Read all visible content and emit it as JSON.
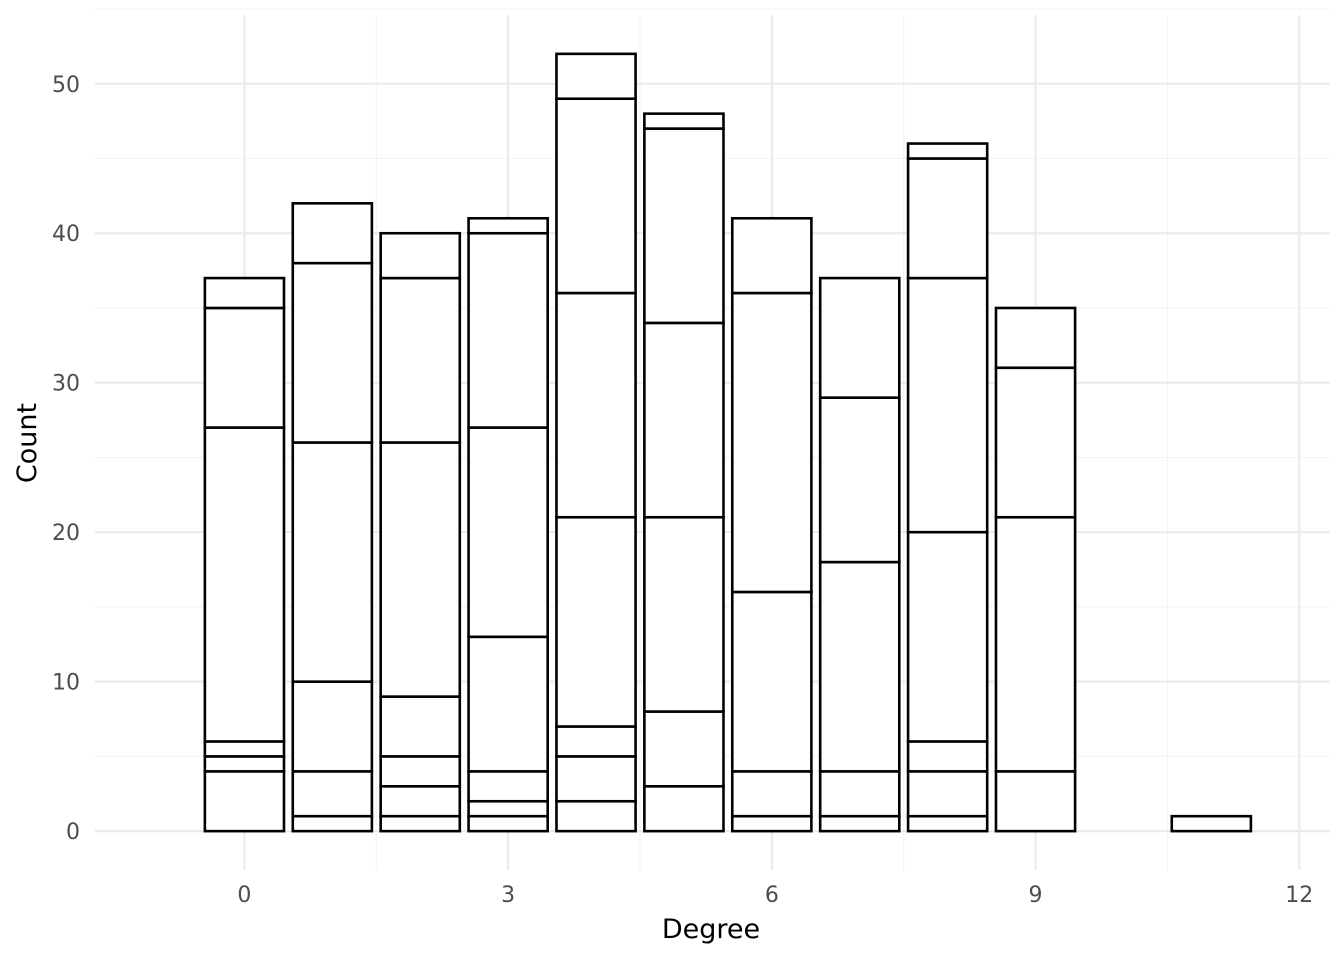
{
  "chart_data": {
    "type": "bar",
    "stacked": true,
    "xlabel": "Degree",
    "ylabel": "Count",
    "xlim": [
      -1.7,
      12.35
    ],
    "ylim": [
      -2.6,
      54.6
    ],
    "x_ticks": [
      0,
      3,
      6,
      9,
      12
    ],
    "y_ticks": [
      0,
      10,
      20,
      30,
      40,
      50
    ],
    "grid": true,
    "legend": "none",
    "bar_width": 0.9,
    "bars": [
      {
        "x": 0,
        "boundaries": [
          4,
          5,
          6,
          27,
          35,
          37
        ]
      },
      {
        "x": 1,
        "boundaries": [
          1,
          4,
          10,
          26,
          38,
          42
        ]
      },
      {
        "x": 2,
        "boundaries": [
          1,
          3,
          5,
          9,
          26,
          37,
          40
        ]
      },
      {
        "x": 3,
        "boundaries": [
          1,
          2,
          4,
          13,
          27,
          40,
          41
        ]
      },
      {
        "x": 4,
        "boundaries": [
          2,
          5,
          7,
          21,
          36,
          49,
          52
        ]
      },
      {
        "x": 5,
        "boundaries": [
          3,
          8,
          21,
          34,
          47,
          48
        ]
      },
      {
        "x": 6,
        "boundaries": [
          1,
          4,
          16,
          36,
          41
        ]
      },
      {
        "x": 7,
        "boundaries": [
          1,
          4,
          18,
          29,
          37
        ]
      },
      {
        "x": 8,
        "boundaries": [
          1,
          4,
          6,
          20,
          37,
          45,
          46
        ]
      },
      {
        "x": 9,
        "boundaries": [
          4,
          21,
          31,
          35
        ]
      },
      {
        "x": 11,
        "boundaries": [
          1
        ]
      }
    ]
  }
}
